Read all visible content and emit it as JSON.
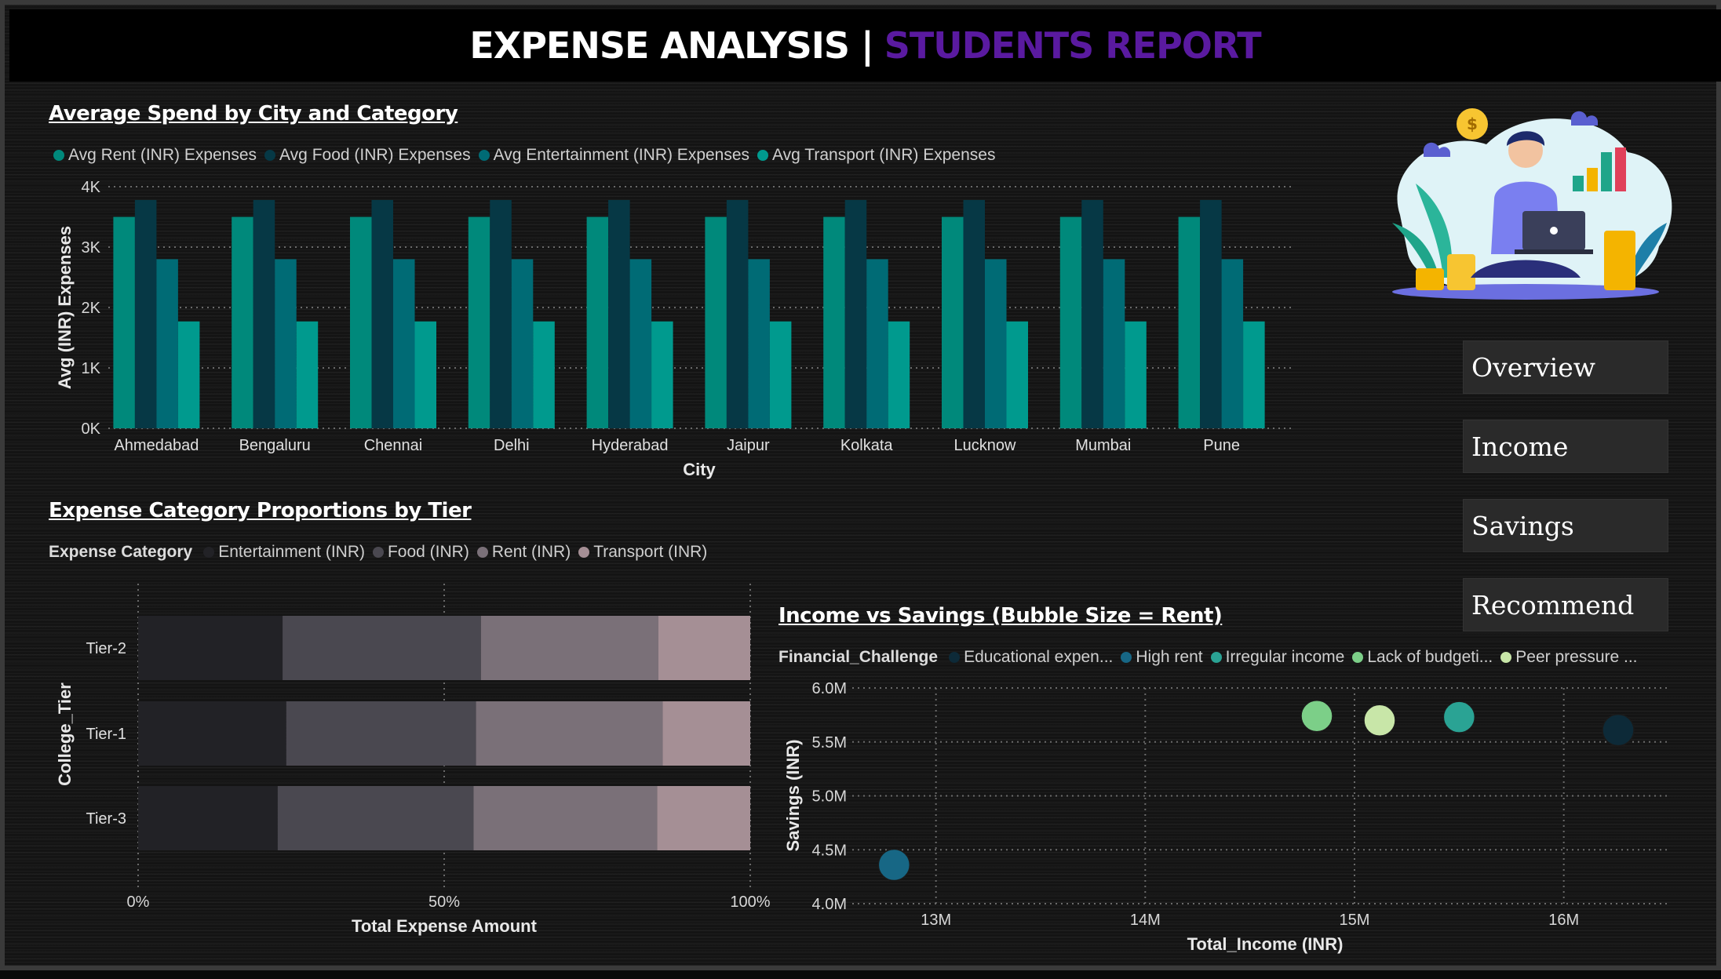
{
  "header": {
    "title_main": "EXPENSE ANALYSIS |",
    "title_accent": "STUDENTS REPORT"
  },
  "nav": {
    "items": [
      "Overview",
      "Income",
      "Savings",
      "Recommend"
    ]
  },
  "illustration": {
    "icon": "student-with-laptop-and-coins-illustration"
  },
  "colors": {
    "accent": "#5a1aa0",
    "background": "#141414"
  },
  "bar_chart": {
    "title": "Average Spend by City and Category",
    "legend": [
      {
        "label": "Avg Rent (INR) Expenses",
        "color": "#00897b"
      },
      {
        "label": "Avg Food (INR) Expenses",
        "color": "#063845"
      },
      {
        "label": "Avg Entertainment (INR) Expenses",
        "color": "#006b75"
      },
      {
        "label": "Avg Transport (INR) Expenses",
        "color": "#009a8e"
      }
    ]
  },
  "stacked_chart": {
    "title": "Expense Category Proportions by Tier",
    "legend_title": "Expense Category",
    "legend": [
      {
        "label": "Entertainment (INR)",
        "color": "#222226"
      },
      {
        "label": "Food (INR)",
        "color": "#4a4850"
      },
      {
        "label": "Rent (INR)",
        "color": "#7a7078"
      },
      {
        "label": "Transport (INR)",
        "color": "#a58f95"
      }
    ]
  },
  "bubble_chart": {
    "title": "Income vs Savings (Bubble Size = Rent)",
    "legend_title": "Financial_Challenge",
    "legend": [
      {
        "label": "Educational expen...",
        "color": "#0d2a38"
      },
      {
        "label": "High rent",
        "color": "#176785"
      },
      {
        "label": "Irregular income",
        "color": "#2aa394"
      },
      {
        "label": "Lack of budgeti...",
        "color": "#7ccf88"
      },
      {
        "label": "Peer pressure ...",
        "color": "#c8e6a8"
      }
    ]
  },
  "chart_data": [
    {
      "type": "bar",
      "title": "Average Spend by City and Category",
      "xlabel": "City",
      "ylabel": "Avg (INR) Expenses",
      "categories": [
        "Ahmedabad",
        "Bengaluru",
        "Chennai",
        "Delhi",
        "Hyderabad",
        "Jaipur",
        "Kolkata",
        "Lucknow",
        "Mumbai",
        "Pune"
      ],
      "ylim": [
        0,
        4000
      ],
      "yticks": [
        "0K",
        "1K",
        "2K",
        "3K",
        "4K"
      ],
      "series": [
        {
          "name": "Avg Rent (INR) Expenses",
          "values": [
            3500,
            3500,
            3500,
            3500,
            3500,
            3500,
            3500,
            3500,
            3500,
            3500
          ]
        },
        {
          "name": "Avg Food (INR) Expenses",
          "values": [
            3780,
            3780,
            3780,
            3780,
            3780,
            3780,
            3780,
            3780,
            3780,
            3780
          ]
        },
        {
          "name": "Avg Entertainment (INR) Expenses",
          "values": [
            2800,
            2800,
            2800,
            2800,
            2800,
            2800,
            2800,
            2800,
            2800,
            2800
          ]
        },
        {
          "name": "Avg Transport (INR) Expenses",
          "values": [
            1770,
            1770,
            1770,
            1770,
            1770,
            1770,
            1770,
            1770,
            1770,
            1770
          ]
        }
      ],
      "grid": true,
      "legend_position": "top-left"
    },
    {
      "type": "bar",
      "title": "Expense Category Proportions by Tier",
      "orientation": "horizontal-stacked-100",
      "xlabel": "Total Expense Amount",
      "ylabel": "College_Tier",
      "categories": [
        "Tier-2",
        "Tier-1",
        "Tier-3"
      ],
      "xticks": [
        "0%",
        "50%",
        "100%"
      ],
      "series": [
        {
          "name": "Entertainment (INR)",
          "values": [
            23.6,
            24.2,
            22.8
          ]
        },
        {
          "name": "Food (INR)",
          "values": [
            32.4,
            31.0,
            32.0
          ]
        },
        {
          "name": "Rent (INR)",
          "values": [
            29.0,
            30.5,
            30.0
          ]
        },
        {
          "name": "Transport (INR)",
          "values": [
            15.0,
            14.3,
            15.2
          ]
        }
      ],
      "grid": true,
      "legend_position": "top-left"
    },
    {
      "type": "scatter",
      "title": "Income vs Savings (Bubble Size = Rent)",
      "xlabel": "Total_Income (INR)",
      "ylabel": "Savings (INR)",
      "xlim": [
        12600000,
        16500000
      ],
      "ylim": [
        4000000,
        6000000
      ],
      "xticks": [
        {
          "value": 13000000,
          "label": "13M"
        },
        {
          "value": 14000000,
          "label": "14M"
        },
        {
          "value": 15000000,
          "label": "15M"
        },
        {
          "value": 16000000,
          "label": "16M"
        }
      ],
      "yticks": [
        {
          "value": 4000000,
          "label": "4.0M"
        },
        {
          "value": 4500000,
          "label": "4.5M"
        },
        {
          "value": 5000000,
          "label": "5.0M"
        },
        {
          "value": 5500000,
          "label": "5.5M"
        },
        {
          "value": 6000000,
          "label": "6.0M"
        }
      ],
      "points": [
        {
          "series": "High rent",
          "x": 12800000,
          "y": 4360000
        },
        {
          "series": "Lack of budgeti...",
          "x": 14820000,
          "y": 5740000
        },
        {
          "series": "Peer pressure ...",
          "x": 15120000,
          "y": 5700000
        },
        {
          "series": "Irregular income",
          "x": 15500000,
          "y": 5730000
        },
        {
          "series": "Educational expen...",
          "x": 16260000,
          "y": 5610000
        }
      ],
      "grid": true,
      "legend_position": "top-left"
    }
  ]
}
